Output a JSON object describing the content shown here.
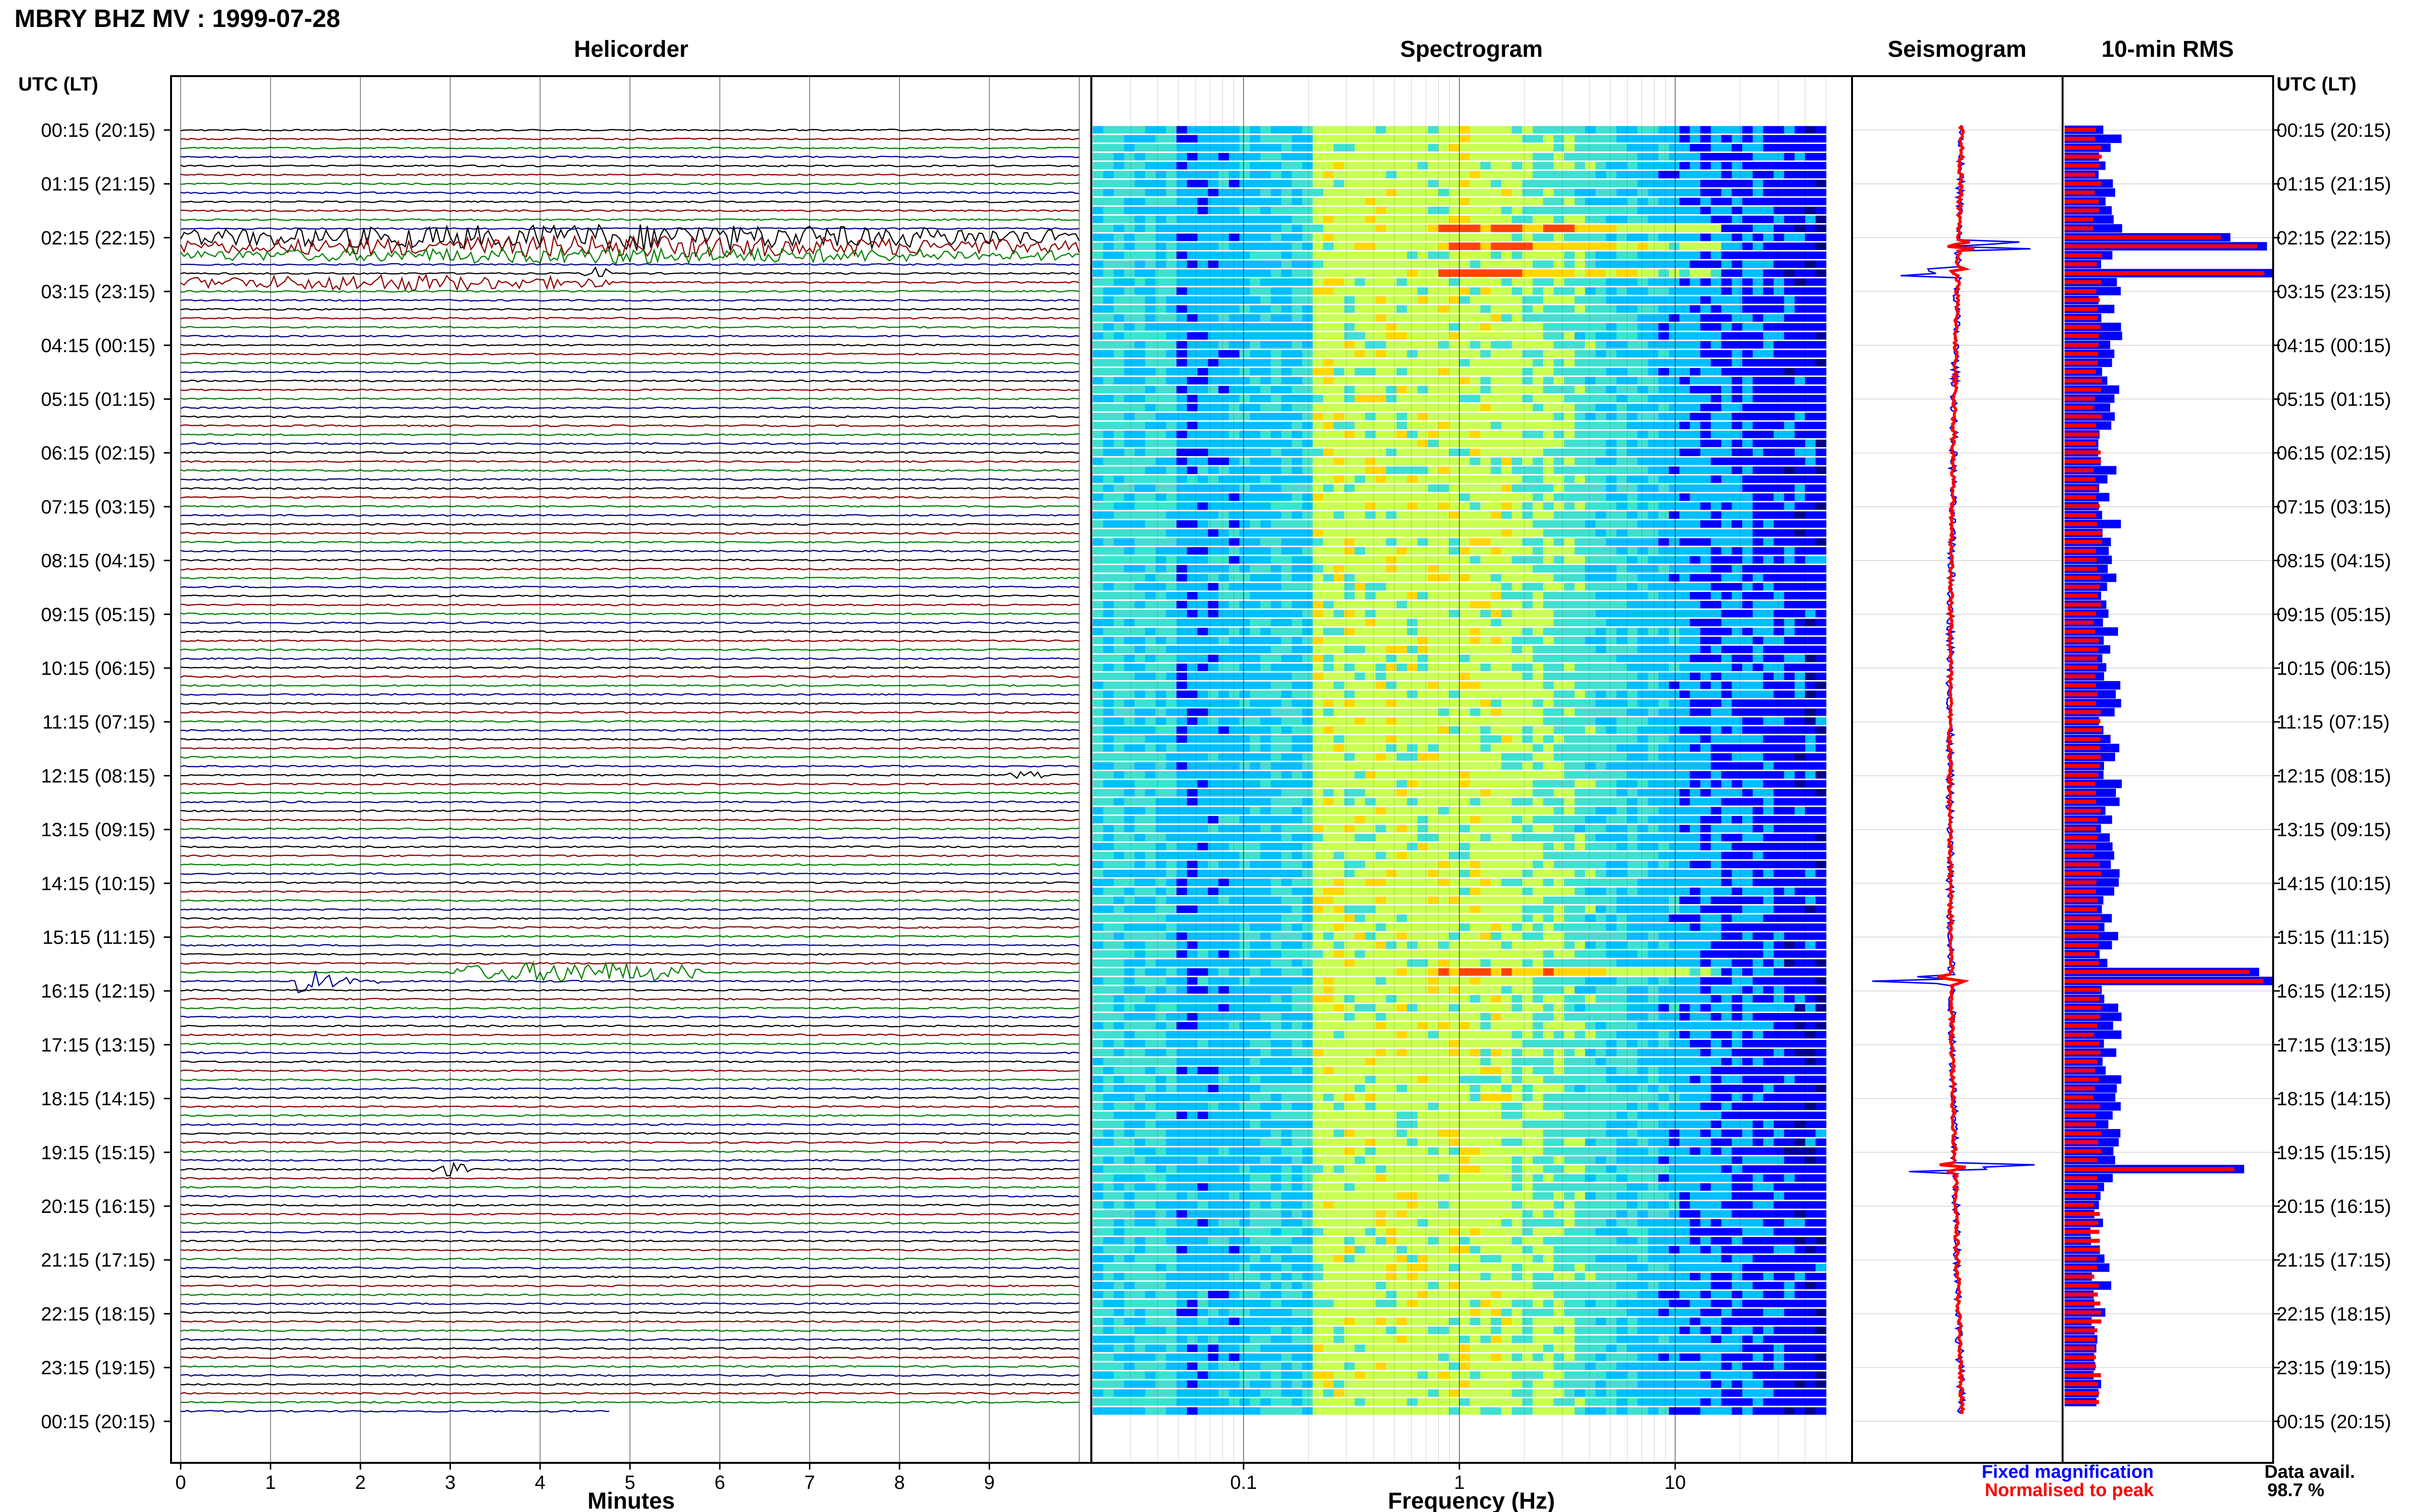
{
  "title": "MBRY BHZ MV : 1999-07-28",
  "panels": {
    "helicorder": "Helicorder",
    "spectrogram": "Spectrogram",
    "seismogram": "Seismogram",
    "rms": "10-min RMS"
  },
  "time_axis_label": "UTC (LT)",
  "time_labels": [
    "00:15 (20:15)",
    "01:15 (21:15)",
    "02:15 (22:15)",
    "03:15 (23:15)",
    "04:15 (00:15)",
    "05:15 (01:15)",
    "06:15 (02:15)",
    "07:15 (03:15)",
    "08:15 (04:15)",
    "09:15 (05:15)",
    "10:15 (06:15)",
    "11:15 (07:15)",
    "12:15 (08:15)",
    "13:15 (09:15)",
    "14:15 (10:15)",
    "15:15 (11:15)",
    "16:15 (12:15)",
    "17:15 (13:15)",
    "18:15 (14:15)",
    "19:15 (15:15)",
    "20:15 (16:15)",
    "21:15 (17:15)",
    "22:15 (18:15)",
    "23:15 (19:15)",
    "00:15 (20:15)"
  ],
  "legend": {
    "fixed": "Fixed magnification",
    "normalised": "Normalised to peak",
    "fixed_color": "#0000ff",
    "normalised_color": "#ff0000"
  },
  "data_avail": {
    "label": "Data avail.",
    "value": "98.7 %"
  },
  "colors": {
    "trace_colors": [
      "#000000",
      "#8b0000",
      "#008000",
      "#00008b"
    ]
  },
  "chart_data": [
    {
      "type": "line",
      "name": "helicorder",
      "xlabel": "Minutes",
      "x_ticks": [
        "0",
        "1",
        "2",
        "3",
        "4",
        "5",
        "6",
        "7",
        "8",
        "9"
      ],
      "xlim": [
        0,
        10
      ],
      "rows": 144,
      "events": [
        {
          "row": 12,
          "start_min": 0,
          "end_min": 10,
          "amp": 1.6
        },
        {
          "row": 13,
          "start_min": 0,
          "end_min": 10,
          "amp": 1.3
        },
        {
          "row": 14,
          "start_min": 0,
          "end_min": 10,
          "amp": 1.0
        },
        {
          "row": 17,
          "start_min": 0,
          "end_min": 4.8,
          "amp": 1.0
        },
        {
          "row": 16,
          "start_min": 4.5,
          "end_min": 4.8,
          "amp": 0.8
        },
        {
          "row": 72,
          "start_min": 9.2,
          "end_min": 9.6,
          "amp": 0.5
        },
        {
          "row": 95,
          "start_min": 1.3,
          "end_min": 1.5,
          "amp": 4.0
        },
        {
          "row": 95,
          "start_min": 1.5,
          "end_min": 2.2,
          "amp": 0.9
        },
        {
          "row": 94,
          "start_min": 3.0,
          "end_min": 5.8,
          "amp": 1.3
        },
        {
          "row": 116,
          "start_min": 2.8,
          "end_min": 3.2,
          "amp": 0.8
        }
      ]
    },
    {
      "type": "heatmap",
      "name": "spectrogram",
      "xlabel": "Frequency (Hz)",
      "x_ticks": [
        "0.1",
        "1",
        "10"
      ],
      "x_scale": "log",
      "xlim": [
        0.02,
        50
      ],
      "colormap": [
        "#00008b",
        "#0000ff",
        "#00bfff",
        "#40e0d0",
        "#c8ff50",
        "#ffd700",
        "#ff4500"
      ],
      "energy_peak_hz": [
        0.25,
        1.5
      ],
      "strong_rows": [
        11,
        13,
        16,
        94
      ]
    },
    {
      "type": "line",
      "name": "seismogram",
      "events_rows": [
        13,
        16,
        95,
        116
      ],
      "drift": "slight left bow, returning right"
    },
    {
      "type": "bar",
      "name": "10-min RMS",
      "orientation": "horizontal",
      "series": [
        {
          "name": "Fixed magnification",
          "color": "#0000ff"
        },
        {
          "name": "Normalised to peak",
          "color": "#ff0000"
        }
      ],
      "peaks_rows": [
        12,
        13,
        16,
        94,
        95,
        116
      ]
    }
  ]
}
